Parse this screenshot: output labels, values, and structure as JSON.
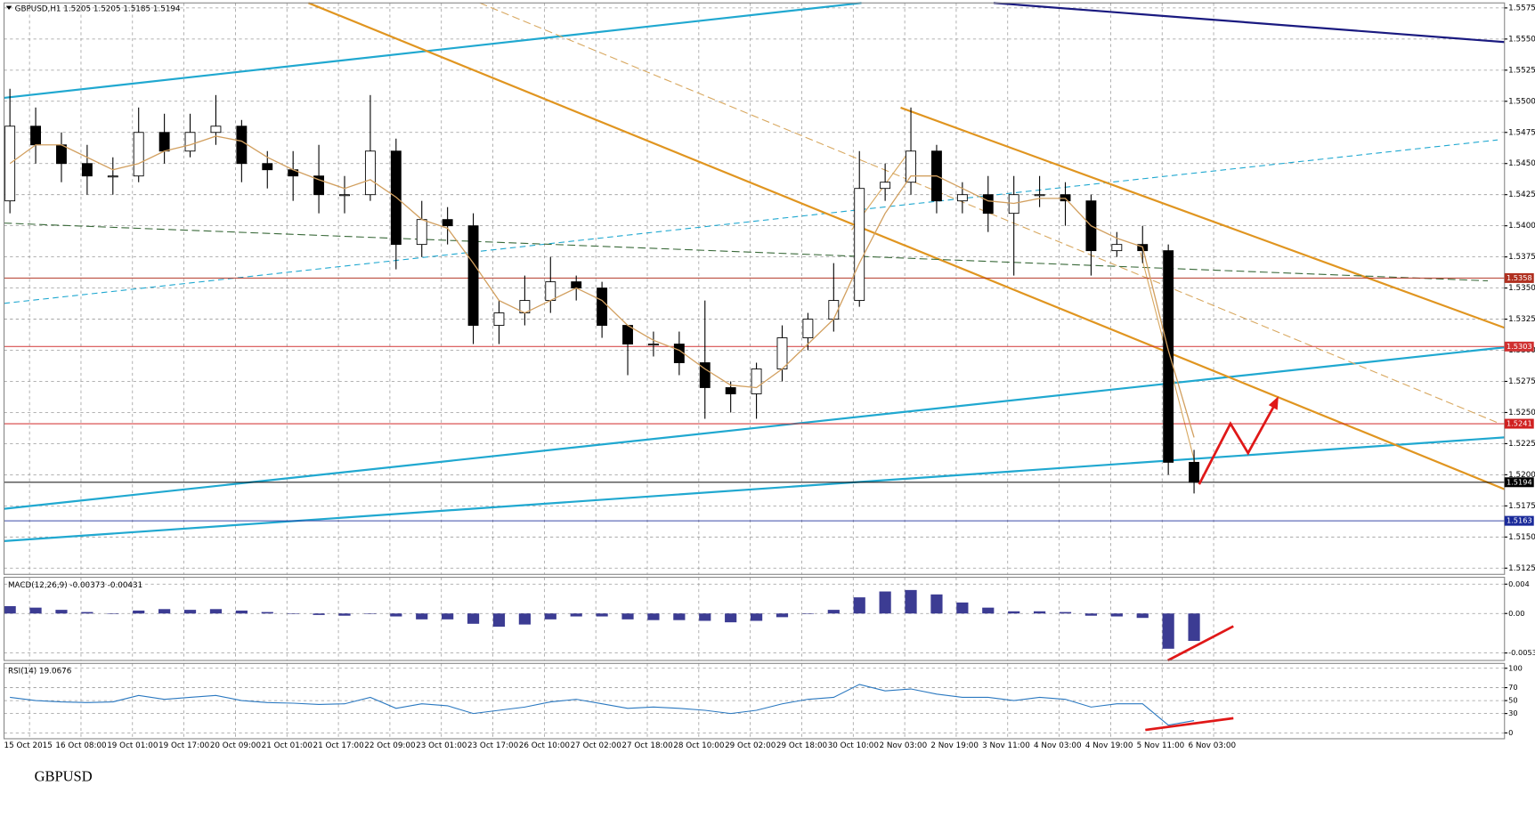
{
  "chart_data": {
    "type": "candlestick",
    "title": "GBPUSD,H1 1.5205 1.5205 1.5185 1.5194",
    "caption": "GBPUSD",
    "categories": [
      "15 Oct 2015",
      null,
      "16 Oct 08:00",
      null,
      "19 Oct 01:00",
      null,
      "19 Oct 17:00",
      null,
      "20 Oct 09:00",
      null,
      "21 Oct 01:00",
      null,
      "21 Oct 17:00",
      null,
      "22 Oct 09:00",
      null,
      "23 Oct 01:00",
      null,
      "23 Oct 17:00",
      null,
      "26 Oct 10:00",
      null,
      "27 Oct 02:00",
      null,
      "27 Oct 18:00",
      null,
      "28 Oct 10:00",
      null,
      "29 Oct 02:00",
      null,
      "29 Oct 18:00",
      null,
      "30 Oct 10:00",
      null,
      "2 Nov 03:00",
      null,
      "2 Nov 19:00",
      null,
      "3 Nov 11:00",
      null,
      "4 Nov 03:00",
      null,
      "4 Nov 19:00",
      null,
      "5 Nov 11:00",
      null,
      "6 Nov 03:00"
    ],
    "open": [
      1.542,
      1.548,
      1.5465,
      1.545,
      1.544,
      1.544,
      1.5475,
      1.546,
      1.5475,
      1.548,
      1.545,
      1.5445,
      1.544,
      1.5425,
      1.5425,
      1.546,
      1.5385,
      1.5405,
      1.54,
      1.532,
      1.533,
      1.534,
      1.5355,
      1.535,
      1.532,
      1.5305,
      1.5305,
      1.529,
      1.527,
      1.5265,
      1.5285,
      1.531,
      1.5325,
      1.534,
      1.543,
      1.5435,
      1.546,
      1.542,
      1.5425,
      1.541,
      1.5425,
      1.5425,
      1.542,
      1.538,
      1.5385,
      1.538,
      1.521
    ],
    "high": [
      1.551,
      1.5495,
      1.5475,
      1.5465,
      1.5455,
      1.5495,
      1.549,
      1.549,
      1.5505,
      1.5485,
      1.546,
      1.546,
      1.5465,
      1.544,
      1.5505,
      1.547,
      1.542,
      1.5415,
      1.541,
      1.534,
      1.536,
      1.5375,
      1.536,
      1.5355,
      1.532,
      1.5315,
      1.5315,
      1.534,
      1.5275,
      1.529,
      1.532,
      1.533,
      1.537,
      1.546,
      1.545,
      1.5495,
      1.5465,
      1.5435,
      1.544,
      1.544,
      1.544,
      1.5435,
      1.5425,
      1.5395,
      1.54,
      1.5385,
      1.522
    ],
    "low": [
      1.541,
      1.545,
      1.5435,
      1.5425,
      1.5425,
      1.5435,
      1.545,
      1.5455,
      1.5465,
      1.5435,
      1.543,
      1.542,
      1.541,
      1.541,
      1.542,
      1.5365,
      1.5375,
      1.5385,
      1.5305,
      1.5305,
      1.532,
      1.533,
      1.534,
      1.531,
      1.528,
      1.5295,
      1.528,
      1.5245,
      1.525,
      1.5245,
      1.5275,
      1.53,
      1.5315,
      1.5335,
      1.542,
      1.5425,
      1.541,
      1.541,
      1.5395,
      1.536,
      1.5415,
      1.54,
      1.536,
      1.5375,
      1.537,
      1.52,
      1.5185
    ],
    "close": [
      1.548,
      1.5465,
      1.545,
      1.544,
      1.544,
      1.5475,
      1.546,
      1.5475,
      1.548,
      1.545,
      1.5445,
      1.544,
      1.5425,
      1.5425,
      1.546,
      1.5385,
      1.5405,
      1.54,
      1.532,
      1.533,
      1.534,
      1.5355,
      1.535,
      1.532,
      1.5305,
      1.5305,
      1.529,
      1.527,
      1.5265,
      1.5285,
      1.531,
      1.5325,
      1.534,
      1.543,
      1.5435,
      1.546,
      1.542,
      1.5425,
      1.541,
      1.5425,
      1.5425,
      1.542,
      1.538,
      1.5385,
      1.538,
      1.521,
      1.5194
    ],
    "up_color": "#ffffff",
    "down_color": "#000000",
    "ma": {
      "color": "#d2a060",
      "values": [
        1.545,
        1.5465,
        1.5465,
        1.5455,
        1.5445,
        1.545,
        1.546,
        1.5465,
        1.5472,
        1.5468,
        1.5455,
        1.5445,
        1.5437,
        1.543,
        1.5437,
        1.5423,
        1.5405,
        1.5398,
        1.537,
        1.534,
        1.533,
        1.534,
        1.535,
        1.534,
        1.532,
        1.5308,
        1.53,
        1.5285,
        1.5272,
        1.527,
        1.5285,
        1.5305,
        1.5325,
        1.537,
        1.541,
        1.544,
        1.544,
        1.543,
        1.542,
        1.5418,
        1.5422,
        1.5422,
        1.54,
        1.539,
        1.5383,
        1.53,
        1.523
      ]
    },
    "ylim": [
      1.512,
      1.5579
    ],
    "yticks": [
      1.5575,
      {
        "value": 1.555,
        "label": "1.5550"
      },
      1.5525,
      {
        "value": 1.55,
        "label": "1.5500"
      },
      1.5475,
      {
        "value": 1.545,
        "label": "1.5450"
      },
      1.5425,
      {
        "value": 1.54,
        "label": "1.5400"
      },
      1.5375,
      {
        "value": 1.535,
        "label": "1.5350"
      },
      1.5325,
      {
        "value": 1.53,
        "label": "1.5300"
      },
      1.5275,
      {
        "value": 1.525,
        "label": "1.5250"
      },
      1.5225,
      {
        "value": 1.52,
        "label": "1.5200"
      },
      1.5175,
      {
        "value": 1.515,
        "label": "1.5150"
      },
      1.5125
    ],
    "grid": true,
    "levels": [
      {
        "value": 1.5358,
        "color": "#b03020"
      },
      {
        "value": 1.5303,
        "color": "#d03030"
      },
      {
        "value": 1.5241,
        "color": "#d02020"
      },
      {
        "value": 1.5194,
        "color": "#000000"
      },
      {
        "value": 1.5163,
        "color": "#1a2a9a"
      }
    ],
    "indicators": [
      {
        "type": "histogram",
        "title": "MACD(12,26,9) -0.00373 -0.00431",
        "color": "#1a1a80",
        "ylim": [
          -0.0064,
          0.0048
        ],
        "yticks": [
          0.004,
          {
            "value": 0,
            "label": "0.00"
          },
          -0.00538
        ],
        "values": [
          0.001,
          0.0008,
          0.0005,
          0.0002,
          0.0,
          0.0004,
          0.0006,
          0.0005,
          0.0006,
          0.0004,
          0.0002,
          0.0,
          -0.0002,
          -0.0003,
          0.0,
          -0.0004,
          -0.0008,
          -0.0008,
          -0.0014,
          -0.0018,
          -0.0015,
          -0.0008,
          -0.0004,
          -0.0004,
          -0.0008,
          -0.0009,
          -0.0009,
          -0.001,
          -0.0012,
          -0.001,
          -0.0005,
          0.0,
          0.0005,
          0.0022,
          0.003,
          0.0032,
          0.0026,
          0.0015,
          0.0008,
          0.0003,
          0.0003,
          0.0002,
          -0.0003,
          -0.0004,
          -0.0006,
          -0.0048,
          -0.00373
        ]
      },
      {
        "type": "line",
        "title": "RSI(14) 19.0676",
        "color": "#2a78c0",
        "ylim": [
          -9,
          106
        ],
        "yticks": [
          100,
          70,
          50,
          30,
          0
        ],
        "values": [
          55,
          50,
          48,
          47,
          48,
          58,
          52,
          55,
          58,
          50,
          47,
          46,
          44,
          45,
          55,
          38,
          45,
          42,
          30,
          35,
          40,
          48,
          52,
          45,
          38,
          40,
          38,
          35,
          30,
          35,
          45,
          52,
          55,
          75,
          65,
          68,
          60,
          55,
          55,
          50,
          55,
          52,
          40,
          45,
          45,
          12,
          19.0676
        ]
      }
    ]
  }
}
